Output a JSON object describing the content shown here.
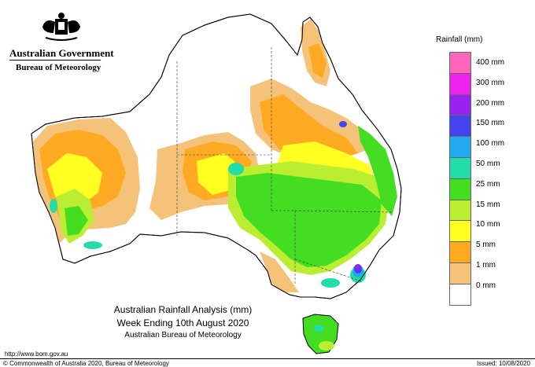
{
  "header": {
    "government": "Australian Government",
    "bureau": "Bureau of Meteorology"
  },
  "map": {
    "title": "Australian Rainfall Analysis (mm)",
    "period": "Week Ending 10th August 2020",
    "source": "Australian Bureau of Meteorology"
  },
  "legend": {
    "title": "Rainfall (mm)",
    "items": [
      {
        "label": "400 mm",
        "color": "#ff66bb"
      },
      {
        "label": "300 mm",
        "color": "#ee22ee"
      },
      {
        "label": "200 mm",
        "color": "#9922ee"
      },
      {
        "label": "150 mm",
        "color": "#4444ee"
      },
      {
        "label": "100 mm",
        "color": "#22aaee"
      },
      {
        "label": "50 mm",
        "color": "#22ddaa"
      },
      {
        "label": "25 mm",
        "color": "#44dd22"
      },
      {
        "label": "15 mm",
        "color": "#bbee33"
      },
      {
        "label": "10 mm",
        "color": "#ffff22"
      },
      {
        "label": "5 mm",
        "color": "#ffaa22"
      },
      {
        "label": "1 mm",
        "color": "#f5c27a"
      },
      {
        "label": "0 mm",
        "color": "#ffffff"
      }
    ]
  },
  "footer": {
    "url": "http://www.bom.gov.au",
    "copyright": "© Commonwealth of Australia 2020, Bureau of Meteorology",
    "issued": "Issued: 10/08/2020"
  }
}
